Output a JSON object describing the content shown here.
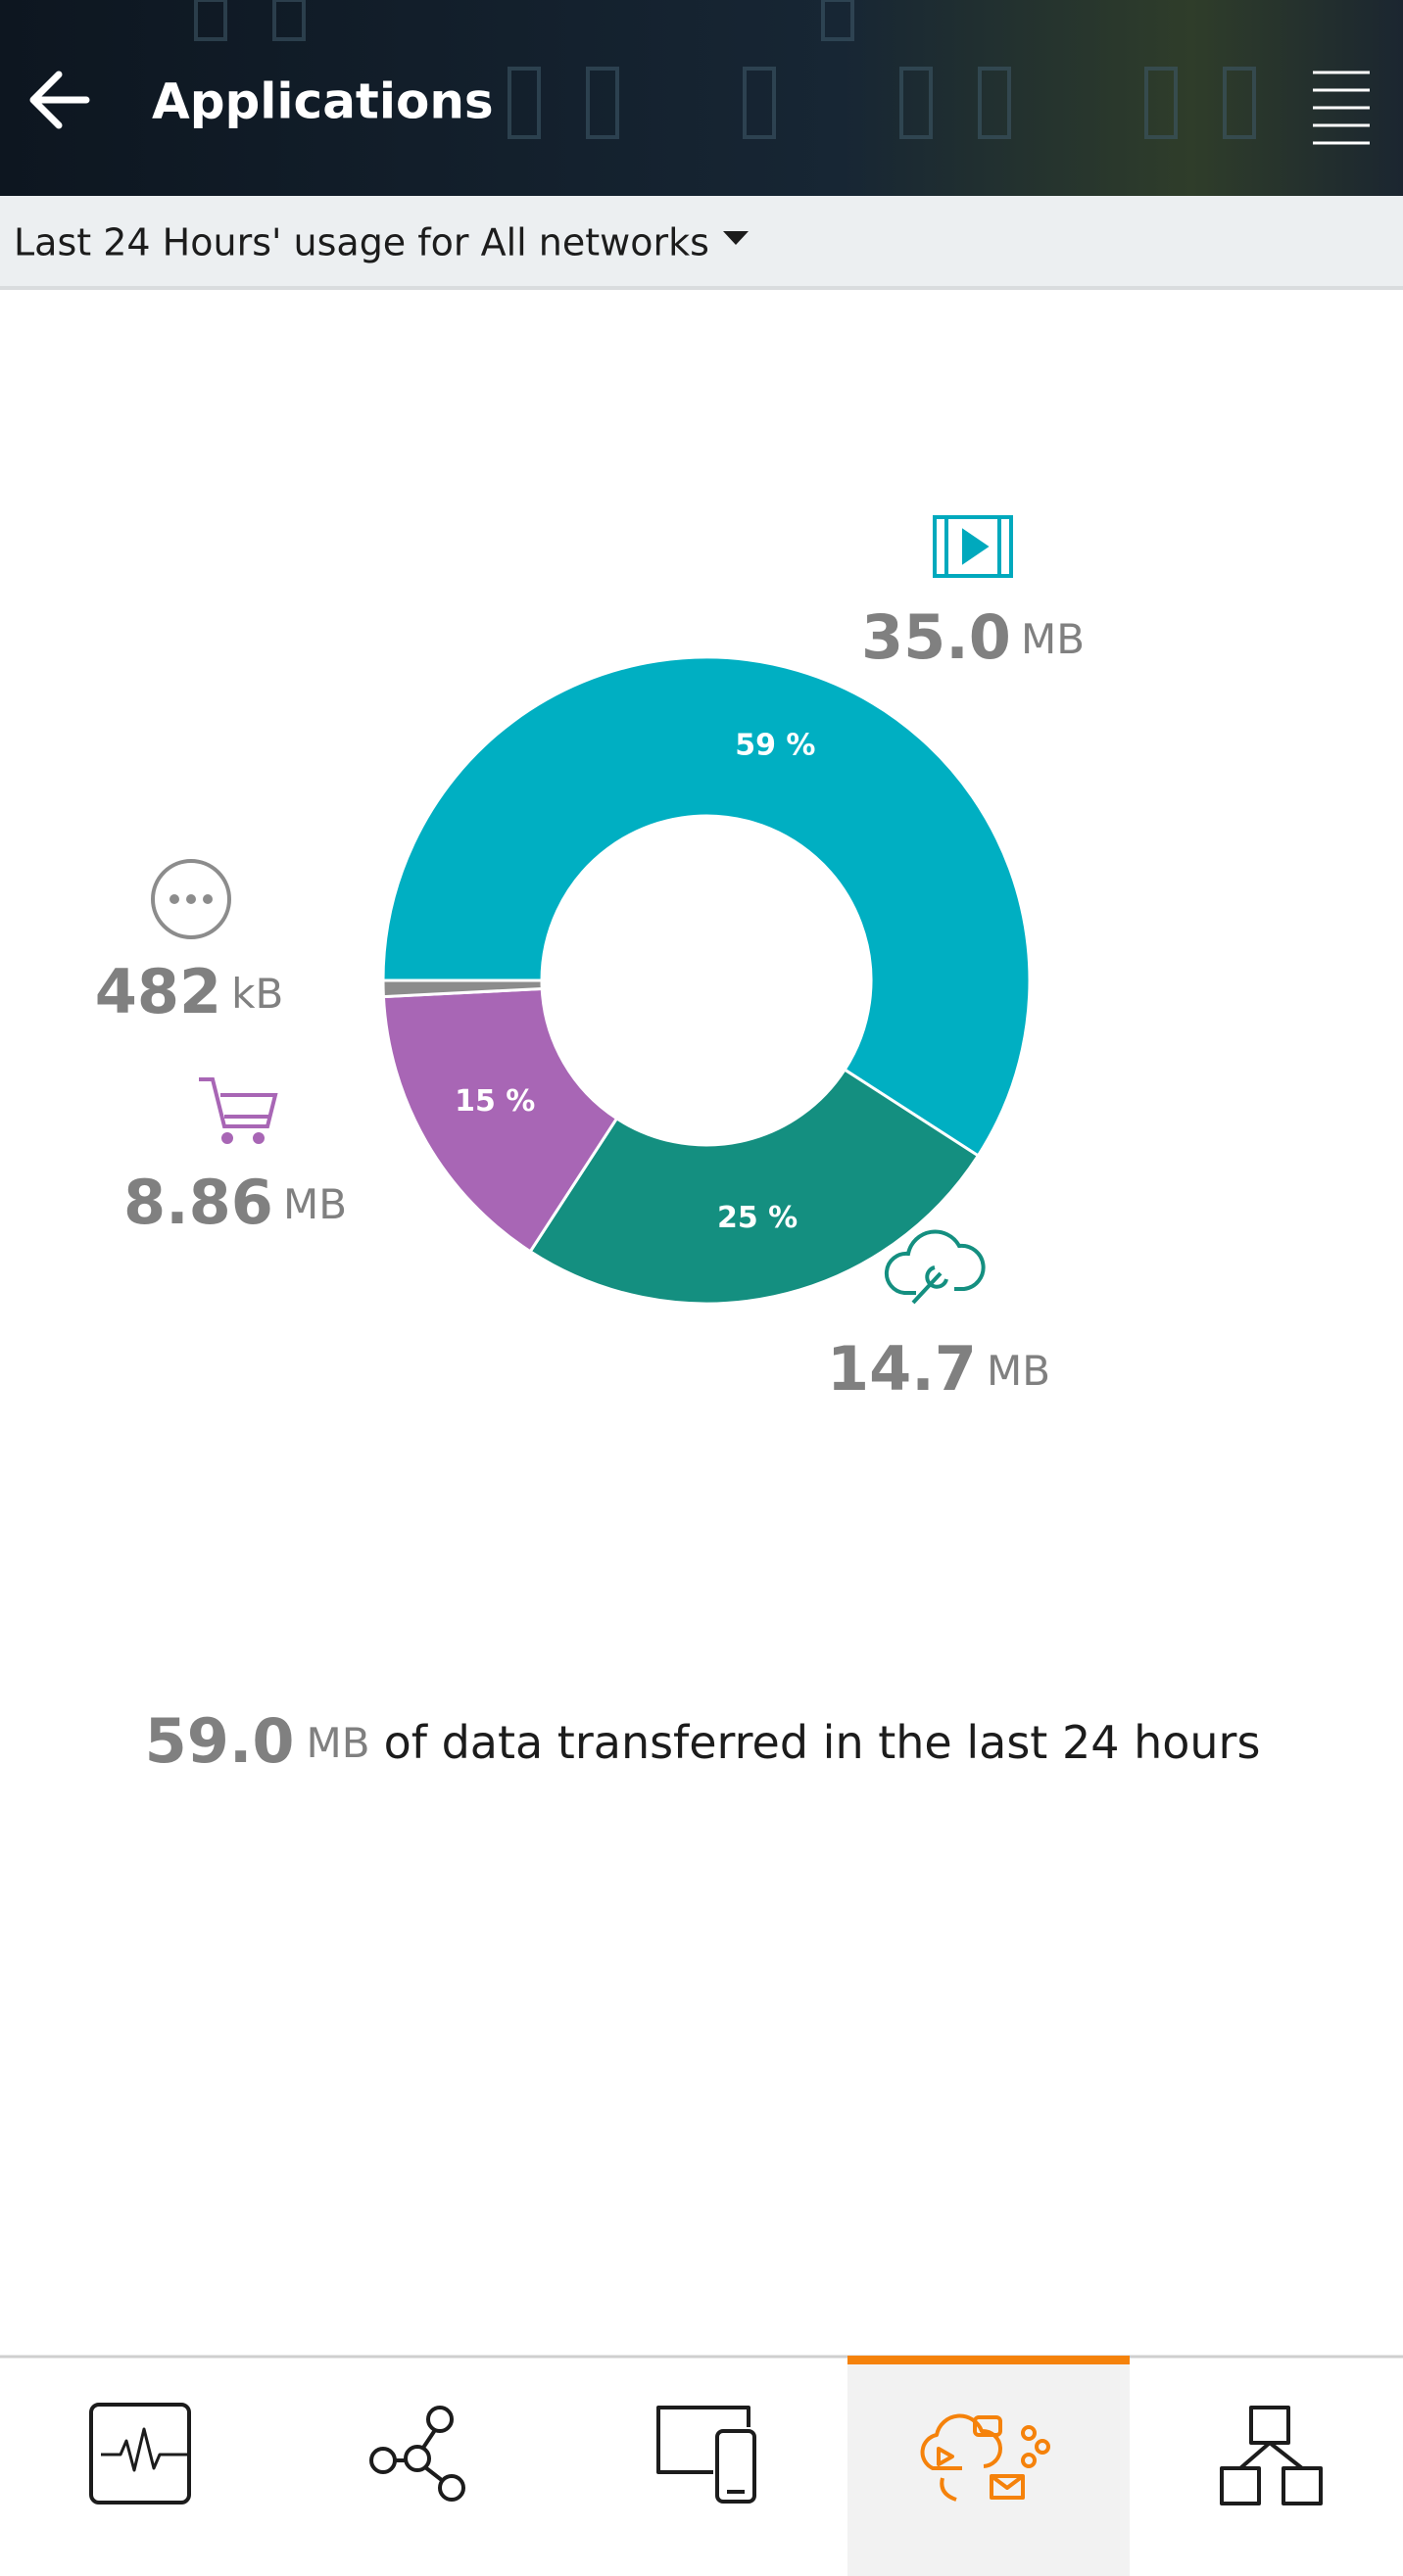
{
  "header": {
    "title": "Applications"
  },
  "filter": {
    "label": "Last 24 Hours' usage for All networks"
  },
  "chart_data": {
    "type": "pie",
    "values": [
      59,
      25,
      15,
      0.8
    ],
    "value_labels": [
      "59 %",
      "25 %",
      "15 %",
      null
    ],
    "colors": [
      "#00afc2",
      "#148f80",
      "#a866b5",
      "#8c8c8c"
    ],
    "amounts": [
      {
        "value": "35.0",
        "unit": "MB"
      },
      {
        "value": "14.7",
        "unit": "MB"
      },
      {
        "value": "8.86",
        "unit": "MB"
      },
      {
        "value": "482",
        "unit": "kB"
      }
    ]
  },
  "summary": {
    "value": "59.0",
    "unit": "MB",
    "text": "of data transferred in the last 24 hours"
  }
}
